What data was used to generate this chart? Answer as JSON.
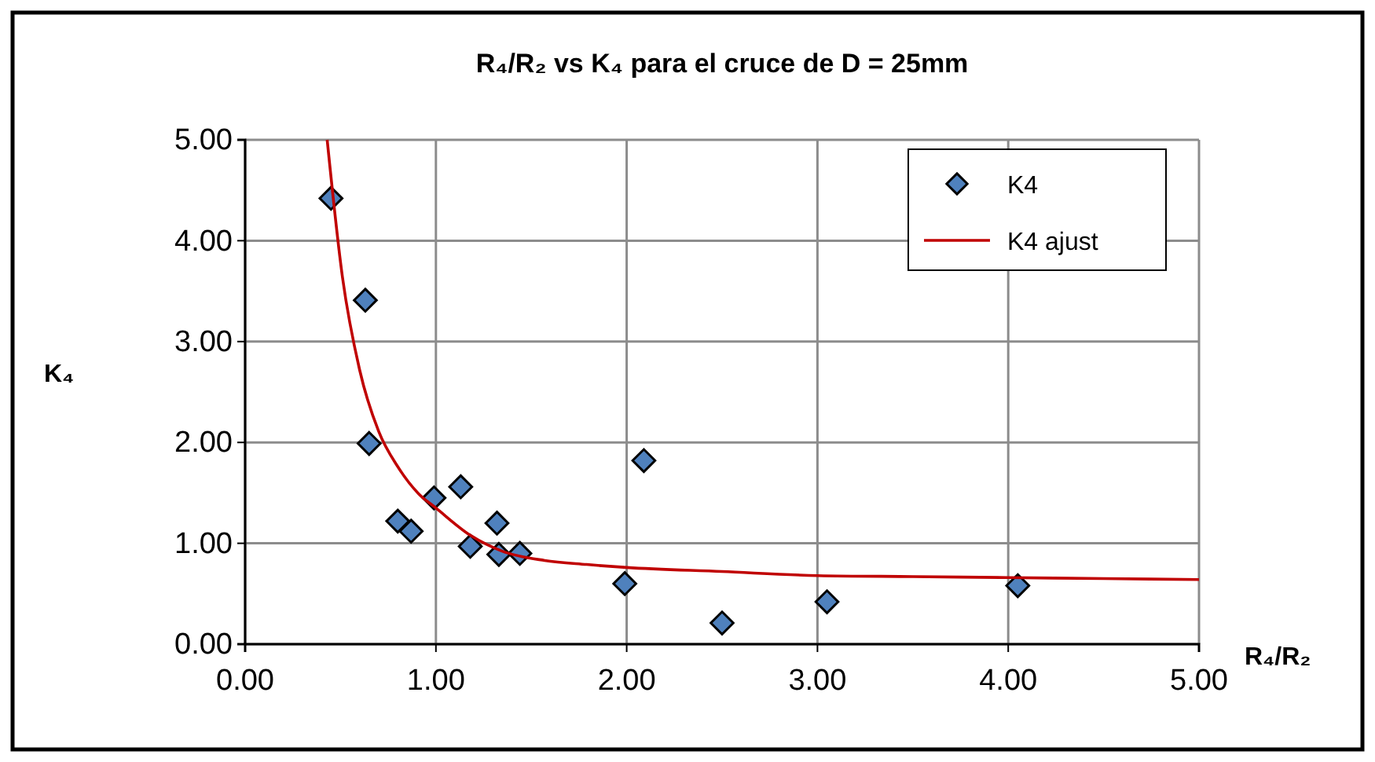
{
  "chart_data": {
    "type": "scatter",
    "title": "R₄/R₂ vs K₄ para el cruce de D = 25mm",
    "xlabel": "R₄/R₂",
    "ylabel": "K₄",
    "xlim": [
      0,
      5
    ],
    "ylim": [
      0,
      5
    ],
    "xticks": [
      {
        "value": 0,
        "label": "0.00"
      },
      {
        "value": 1,
        "label": "1.00"
      },
      {
        "value": 2,
        "label": "2.00"
      },
      {
        "value": 3,
        "label": "3.00"
      },
      {
        "value": 4,
        "label": "4.00"
      },
      {
        "value": 5,
        "label": "5.00"
      }
    ],
    "yticks": [
      {
        "value": 0,
        "label": "0.00"
      },
      {
        "value": 1,
        "label": "1.00"
      },
      {
        "value": 2,
        "label": "2.00"
      },
      {
        "value": 3,
        "label": "3.00"
      },
      {
        "value": 4,
        "label": "4.00"
      },
      {
        "value": 5,
        "label": "5.00"
      }
    ],
    "grid": true,
    "legend": "top right",
    "series": [
      {
        "name": "K4",
        "marker": "diamond",
        "color": "#4f81bd",
        "x": [
          0.45,
          0.63,
          0.65,
          0.8,
          0.87,
          0.99,
          1.13,
          1.18,
          1.32,
          1.33,
          1.44,
          1.99,
          2.09,
          2.5,
          3.05,
          4.05
        ],
        "values": [
          4.42,
          3.41,
          1.99,
          1.22,
          1.12,
          1.45,
          1.56,
          0.97,
          1.2,
          0.89,
          0.9,
          0.6,
          1.82,
          0.21,
          0.42,
          0.58
        ]
      },
      {
        "name": "K4 ajust",
        "type": "line",
        "marker": "none",
        "color": "#c00000",
        "x": [
          0.43,
          0.51,
          0.6,
          0.7,
          0.8,
          0.91,
          1.0,
          1.18,
          1.35,
          1.57,
          1.79,
          2.0,
          2.5,
          3.0,
          3.5,
          4.0,
          4.5,
          5.0
        ],
        "values": [
          5.0,
          3.64,
          2.72,
          2.11,
          1.76,
          1.49,
          1.35,
          1.08,
          0.92,
          0.83,
          0.79,
          0.76,
          0.72,
          0.68,
          0.67,
          0.66,
          0.65,
          0.64
        ]
      }
    ]
  }
}
